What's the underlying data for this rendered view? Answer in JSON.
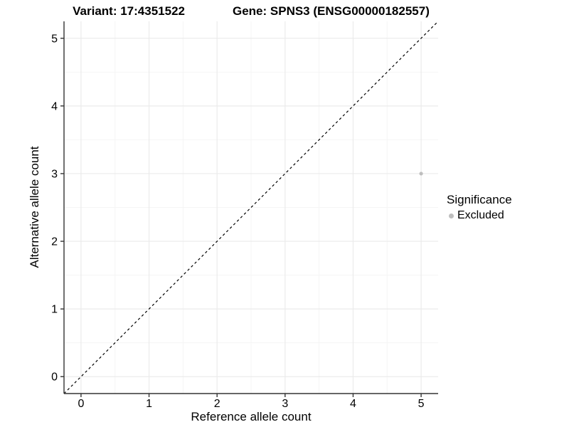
{
  "header": {
    "variant_title": "Variant: 17:4351522",
    "gene_title": "Gene: SPNS3 (ENSG00000182557)"
  },
  "chart_data": {
    "type": "scatter",
    "title_left": "Variant: 17:4351522",
    "title_right": "Gene: SPNS3 (ENSG00000182557)",
    "xlabel": "Reference allele count",
    "ylabel": "Alternative allele count",
    "xlim": [
      -0.25,
      5.25
    ],
    "ylim": [
      -0.25,
      5.25
    ],
    "x_ticks": [
      0,
      1,
      2,
      3,
      4,
      5
    ],
    "y_ticks": [
      0,
      1,
      2,
      3,
      4,
      5
    ],
    "x_minor_ticks": [
      0.5,
      1.5,
      2.5,
      3.5,
      4.5
    ],
    "y_minor_ticks": [
      0.5,
      1.5,
      2.5,
      3.5,
      4.5
    ],
    "grid": "major+minor",
    "series": [
      {
        "name": "Excluded",
        "color": "#bebebe",
        "points": [
          {
            "x": 5,
            "y": 3
          }
        ]
      }
    ],
    "reference_line": {
      "type": "identity",
      "style": "dashed",
      "color": "#000000",
      "from": [
        -0.25,
        -0.25
      ],
      "to": [
        5.25,
        5.25
      ]
    },
    "legend": {
      "title": "Significance",
      "position": "right",
      "items": [
        {
          "label": "Excluded",
          "color": "#bebebe"
        }
      ]
    }
  },
  "colors": {
    "background": "#ffffff",
    "grid_major": "#ebebeb",
    "grid_minor": "#f5f5f5",
    "axis_line": "#333333",
    "tick": "#333333",
    "text": "#000000",
    "point_excluded": "#bebebe",
    "identity_line": "#000000"
  }
}
